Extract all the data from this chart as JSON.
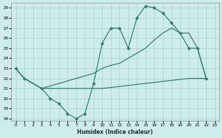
{
  "xlabel": "Humidex (Indice chaleur)",
  "line_color": "#2e7d6e",
  "bg_color": "#cdecea",
  "grid_color": "#acd8d5",
  "xlim": [
    -0.5,
    23.5
  ],
  "ylim": [
    17.8,
    29.5
  ],
  "yticks": [
    18,
    19,
    20,
    21,
    22,
    23,
    24,
    25,
    26,
    27,
    28,
    29
  ],
  "xticks": [
    0,
    1,
    2,
    3,
    4,
    5,
    6,
    7,
    8,
    9,
    10,
    11,
    12,
    13,
    14,
    15,
    16,
    17,
    18,
    19,
    20,
    21,
    22,
    23
  ],
  "curve1_x": [
    0,
    1,
    3,
    4,
    5,
    6,
    7,
    8,
    9,
    10,
    11,
    12,
    13,
    14,
    15,
    16,
    17,
    18,
    19,
    20,
    21,
    22
  ],
  "curve1_y": [
    23,
    22,
    21,
    20,
    19.5,
    18.5,
    18,
    18.5,
    21.5,
    25.5,
    27,
    27,
    25,
    28,
    29.2,
    29,
    28.5,
    27.5,
    26.5,
    25,
    25,
    22
  ],
  "curve2_x": [
    0,
    1,
    3,
    9,
    10,
    11,
    12,
    13,
    14,
    15,
    16,
    17,
    18,
    19,
    20,
    21,
    22
  ],
  "curve2_y": [
    23,
    22,
    21,
    22.5,
    23,
    23.3,
    23.5,
    24,
    24.5,
    25,
    25.8,
    26.5,
    27,
    26.5,
    26.5,
    25,
    22
  ],
  "curve3_x": [
    0,
    1,
    3,
    9,
    10,
    11,
    12,
    13,
    14,
    15,
    16,
    17,
    18,
    19,
    20,
    21,
    22
  ],
  "curve3_y": [
    23,
    22,
    21,
    21,
    21,
    21.1,
    21.2,
    21.3,
    21.4,
    21.5,
    21.6,
    21.7,
    21.8,
    21.9,
    22,
    22,
    22
  ]
}
